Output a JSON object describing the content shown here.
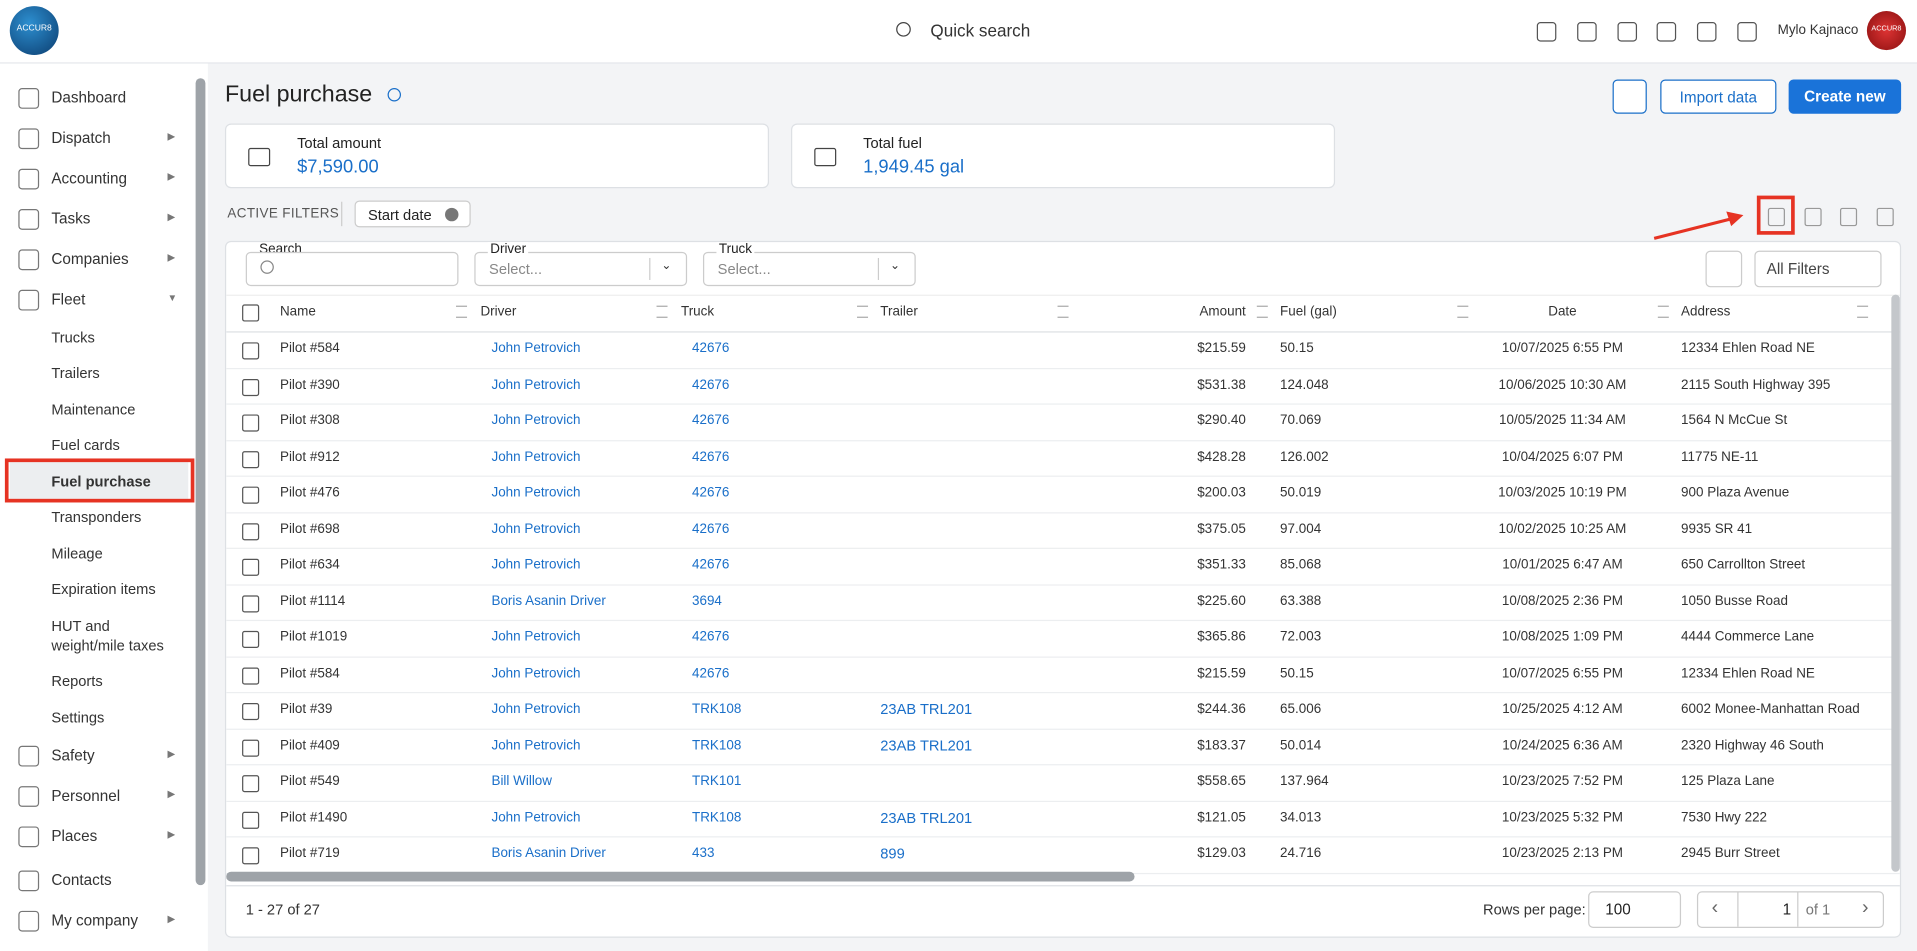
{
  "header": {
    "logo": "ACCUR8",
    "search": "Quick search",
    "user": "Mylo Kajnaco"
  },
  "sidebar": {
    "items": [
      {
        "label": "Dashboard",
        "expandable": false
      },
      {
        "label": "Dispatch",
        "expandable": true
      },
      {
        "label": "Accounting",
        "expandable": true
      },
      {
        "label": "Tasks",
        "expandable": true
      },
      {
        "label": "Companies",
        "expandable": true
      },
      {
        "label": "Fleet",
        "expandable": true,
        "expanded": true,
        "children": [
          "Trucks",
          "Trailers",
          "Maintenance",
          "Fuel cards",
          "Fuel purchase",
          "Transponders",
          "Mileage",
          "Expiration items",
          "HUT and weight/mile taxes",
          "Reports",
          "Settings"
        ],
        "active_child": 4
      },
      {
        "label": "Safety",
        "expandable": true
      },
      {
        "label": "Personnel",
        "expandable": true
      },
      {
        "label": "Places",
        "expandable": true
      },
      {
        "label": "Contacts",
        "expandable": false
      },
      {
        "label": "My company",
        "expandable": true
      }
    ]
  },
  "page": {
    "title": "Fuel purchase",
    "buttons": [
      "Import data",
      "Create new"
    ]
  },
  "summary": [
    {
      "label": "Total amount",
      "value": "$7,590.00"
    },
    {
      "label": "Total fuel",
      "value": "1,949.45 gal"
    }
  ],
  "filters": {
    "label": "ACTIVE FILTERS",
    "chips": [
      "Start date"
    ],
    "search": "Search",
    "driver": {
      "label": "Driver",
      "placeholder": "Select..."
    },
    "truck": {
      "label": "Truck",
      "placeholder": "Select..."
    },
    "all": "All Filters"
  },
  "table": {
    "columns": [
      "Name",
      "Driver",
      "Truck",
      "Trailer",
      "Amount",
      "Fuel (gal)",
      "Date",
      "Address"
    ],
    "rows": [
      [
        "Pilot #584",
        "John Petrovich",
        "42676",
        null,
        "$215.59",
        "50.15",
        "10/07/2025 6:55 PM",
        "12334 Ehlen Road NE"
      ],
      [
        "Pilot #390",
        "John Petrovich",
        "42676",
        null,
        "$531.38",
        "124.048",
        "10/06/2025 10:30 AM",
        "2115 South Highway 395"
      ],
      [
        "Pilot #308",
        "John Petrovich",
        "42676",
        null,
        "$290.40",
        "70.069",
        "10/05/2025 11:34 AM",
        "1564 N McCue St"
      ],
      [
        "Pilot #912",
        "John Petrovich",
        "42676",
        null,
        "$428.28",
        "126.002",
        "10/04/2025 6:07 PM",
        "11775 NE-11"
      ],
      [
        "Pilot #476",
        "John Petrovich",
        "42676",
        null,
        "$200.03",
        "50.019",
        "10/03/2025 10:19 PM",
        "900 Plaza Avenue"
      ],
      [
        "Pilot #698",
        "John Petrovich",
        "42676",
        null,
        "$375.05",
        "97.004",
        "10/02/2025 10:25 AM",
        "9935 SR 41"
      ],
      [
        "Pilot #634",
        "John Petrovich",
        "42676",
        null,
        "$351.33",
        "85.068",
        "10/01/2025 6:47 AM",
        "650 Carrollton Street"
      ],
      [
        "Pilot #1114",
        "Boris Asanin Driver",
        "3694",
        null,
        "$225.60",
        "63.388",
        "10/08/2025 2:36 PM",
        "1050 Busse Road"
      ],
      [
        "Pilot #1019",
        "John Petrovich",
        "42676",
        null,
        "$365.86",
        "72.003",
        "10/08/2025 1:09 PM",
        "4444 Commerce Lane"
      ],
      [
        "Pilot #584",
        "John Petrovich",
        "42676",
        null,
        "$215.59",
        "50.15",
        "10/07/2025 6:55 PM",
        "12334 Ehlen Road NE"
      ],
      [
        "Pilot #39",
        "John Petrovich",
        "TRK108",
        "23AB TRL201",
        "$244.36",
        "65.006",
        "10/25/2025 4:12 AM",
        "6002 Monee-Manhattan Road"
      ],
      [
        "Pilot #409",
        "John Petrovich",
        "TRK108",
        "23AB TRL201",
        "$183.37",
        "50.014",
        "10/24/2025 6:36 AM",
        "2320 Highway 46 South"
      ],
      [
        "Pilot #549",
        "Bill Willow",
        "TRK101",
        null,
        "$558.65",
        "137.964",
        "10/23/2025 7:52 PM",
        "125 Plaza Lane"
      ],
      [
        "Pilot #1490",
        "John Petrovich",
        "TRK108",
        "23AB TRL201",
        "$121.05",
        "34.013",
        "10/23/2025 5:32 PM",
        "7530 Hwy 222"
      ],
      [
        "Pilot #719",
        "Boris Asanin Driver",
        "433",
        "899",
        "$129.03",
        "24.716",
        "10/23/2025 2:13 PM",
        "2945 Burr Street"
      ]
    ]
  },
  "footer": {
    "range": "1 - 27 of 27",
    "rows_per_page_label": "Rows per page:",
    "rows_per_page": "100",
    "page": "1",
    "of": "of 1"
  }
}
